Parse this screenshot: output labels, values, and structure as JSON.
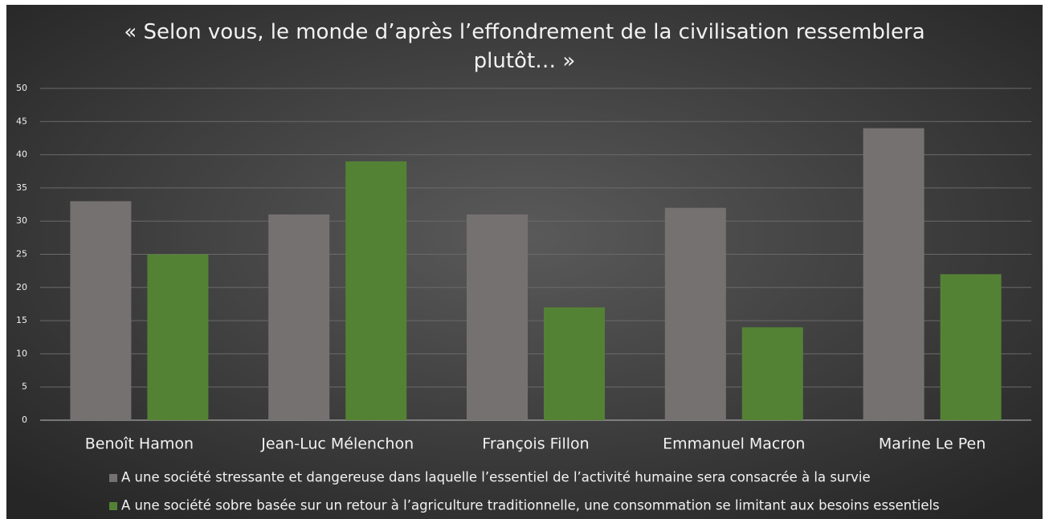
{
  "chart_data": {
    "type": "bar",
    "title": "« Selon vous, le monde d’après l’effondrement de la civilisation ressemblera plutôt… »",
    "categories": [
      "Benoît Hamon",
      "Jean-Luc Mélenchon",
      "François Fillon",
      "Emmanuel Macron",
      "Marine Le Pen"
    ],
    "series": [
      {
        "name": "A une société stressante et dangereuse dans laquelle l’essentiel de l’activité humaine sera consacrée à la survie",
        "color": "#767171",
        "values": [
          33,
          31,
          31,
          32,
          44
        ]
      },
      {
        "name": "A une société sobre basée sur un retour à l’agriculture traditionnelle, une consommation se limitant aux besoins essentiels",
        "color": "#548235",
        "values": [
          25,
          39,
          17,
          14,
          22
        ]
      }
    ],
    "ylim": [
      0,
      50
    ],
    "yticks": [
      0,
      5,
      10,
      15,
      20,
      25,
      30,
      35,
      40,
      45,
      50
    ],
    "grid": true,
    "legend": "bottom"
  }
}
